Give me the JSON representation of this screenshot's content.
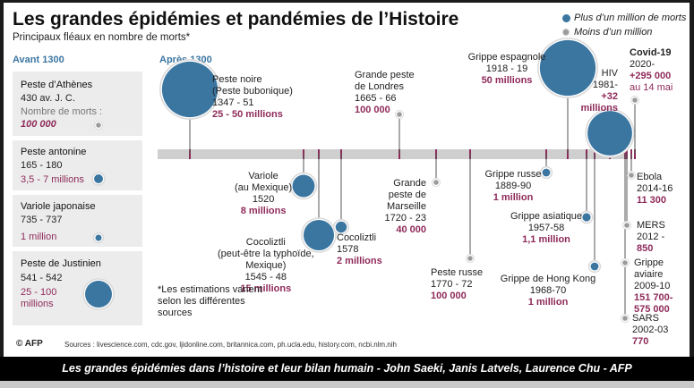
{
  "title": "Les grandes épidémies et pandémies de l’Histoire",
  "subtitle": "Principaux fléaux en nombre de morts*",
  "legend": {
    "big": "Plus d’un million de morts",
    "small": "Moins d’un million"
  },
  "headers": {
    "before": "Avant 1300",
    "after": "Après 1300"
  },
  "colors": {
    "bubble": "#3b76a1",
    "deaths": "#8e2a5a",
    "small": "#9b9b9b",
    "timeline": "#cfcfcf"
  },
  "before": [
    {
      "name": "Peste d’Athènes",
      "date": "430 av. J. C.",
      "label": "Nombre de morts :",
      "deaths": "100 000",
      "size": "small"
    },
    {
      "name": "Peste antonine",
      "date": "165 - 180",
      "deaths": "3,5 - 7 millions",
      "size": "big"
    },
    {
      "name": "Variole japonaise",
      "date": "735 - 737",
      "deaths": "1 million",
      "size": "big"
    },
    {
      "name": "Peste de Justinien",
      "date": "541 - 542",
      "deaths": "25 - 100 millions",
      "size": "big"
    }
  ],
  "note": "*Les estimations varient selon les différentes sources",
  "sources": "Sources : livescience.com, cdc.gov, ljidonline.com, britannica.com, ph.ucla.edu, history.com, ncbi.nlm.nih",
  "credit": "© AFP",
  "caption": "Les grandes épidémies dans l’histoire et leur bilan humain - John Saeki, Janis Latvels, Laurence Chu - AFP",
  "chart_data": {
    "type": "scatter",
    "x_label": "",
    "series": [
      {
        "name": "Peste noire (Peste bubonique)",
        "period": "1347 - 51",
        "deaths_text": "25 - 50 millions",
        "deaths_min": 25000000,
        "deaths_max": 50000000
      },
      {
        "name": "Variole (au Mexique)",
        "period": "1520",
        "deaths_text": "8 millions",
        "deaths_min": 8000000,
        "deaths_max": 8000000
      },
      {
        "name": "Cocoliztli (peut-être la typhoïde, Mexique)",
        "period": "1545 - 48",
        "deaths_text": "15 millions",
        "deaths_min": 15000000,
        "deaths_max": 15000000
      },
      {
        "name": "Cocoliztli",
        "period": "1578",
        "deaths_text": "2 millions",
        "deaths_min": 2000000,
        "deaths_max": 2000000
      },
      {
        "name": "Grande peste de Londres",
        "period": "1665 - 66",
        "deaths_text": "100 000",
        "deaths_min": 100000,
        "deaths_max": 100000
      },
      {
        "name": "Grande peste de Marseille",
        "period": "1720 - 23",
        "deaths_text": "40 000",
        "deaths_min": 40000,
        "deaths_max": 40000
      },
      {
        "name": "Peste russe",
        "period": "1770 - 72",
        "deaths_text": "100 000",
        "deaths_min": 100000,
        "deaths_max": 100000
      },
      {
        "name": "Grippe russe",
        "period": "1889-90",
        "deaths_text": "1 million",
        "deaths_min": 1000000,
        "deaths_max": 1000000
      },
      {
        "name": "Grippe espagnole",
        "period": "1918 - 19",
        "deaths_text": "50 millions",
        "deaths_min": 50000000,
        "deaths_max": 50000000
      },
      {
        "name": "Grippe asiatique",
        "period": "1957-58",
        "deaths_text": "1,1 million",
        "deaths_min": 1100000,
        "deaths_max": 1100000
      },
      {
        "name": "Grippe de Hong Kong",
        "period": "1968-70",
        "deaths_text": "1 million",
        "deaths_min": 1000000,
        "deaths_max": 1000000
      },
      {
        "name": "HIV",
        "period": "1981-",
        "deaths_text": "+32 millions",
        "deaths_min": 32000000,
        "deaths_max": 32000000
      },
      {
        "name": "SARS",
        "period": "2002-03",
        "deaths_text": "770",
        "deaths_min": 770,
        "deaths_max": 770
      },
      {
        "name": "Grippe aviaire",
        "period": "2009-10",
        "deaths_text": "151 700-575 000",
        "deaths_min": 151700,
        "deaths_max": 575000
      },
      {
        "name": "MERS",
        "period": "2012 -",
        "deaths_text": "850",
        "deaths_min": 850,
        "deaths_max": 850
      },
      {
        "name": "Ebola",
        "period": "2014-16",
        "deaths_text": "11 300",
        "deaths_min": 11300,
        "deaths_max": 11300
      },
      {
        "name": "Covid-19",
        "period": "2020-",
        "deaths_text": "+295 000 au 14 mai",
        "deaths_min": 295000,
        "deaths_max": 295000
      }
    ]
  },
  "labels": {
    "peste_noire": [
      "Peste noire",
      "(Peste bubonique)",
      "1347 - 51",
      "25 - 50 millions"
    ],
    "variole": [
      "Variole",
      "(au Mexique)",
      "1520",
      "8 millions"
    ],
    "cocol1": [
      "Cocoliztli",
      "(peut-être la typhoïde,",
      "Mexique)",
      "1545 - 48",
      "15 millions"
    ],
    "cocol2": [
      "Cocoliztli",
      "1578",
      "2 millions"
    ],
    "londres": [
      "Grande peste",
      "de Londres",
      "1665 - 66",
      "100 000"
    ],
    "marseille": [
      "Grande",
      "peste de",
      "Marseille",
      "1720 - 23",
      "40 000"
    ],
    "russe": [
      "Peste russe",
      "1770 - 72",
      "100 000"
    ],
    "grippe_russe": [
      "Grippe russe",
      "1889-90",
      "1 million"
    ],
    "espagnole": [
      "Grippe espagnole",
      "1918 - 19",
      "50 millions"
    ],
    "asiatique": [
      "Grippe asiatique",
      "1957-58",
      "1,1 million"
    ],
    "hongkong": [
      "Grippe de Hong Kong",
      "1968-70",
      "1 million"
    ],
    "hiv": [
      "HIV",
      "1981-",
      "+32",
      "millions"
    ],
    "covid": [
      "Covid-19",
      "2020-",
      "+295 000",
      "au 14 mai"
    ],
    "ebola": [
      "Ebola",
      "2014-16",
      "11 300"
    ],
    "mers": [
      "MERS",
      "2012 -",
      "850"
    ],
    "aviaire": [
      "Grippe",
      "aviaire",
      "2009-10",
      "151 700-",
      "575 000"
    ],
    "sars": [
      "SARS",
      "2002-03",
      "770"
    ]
  }
}
